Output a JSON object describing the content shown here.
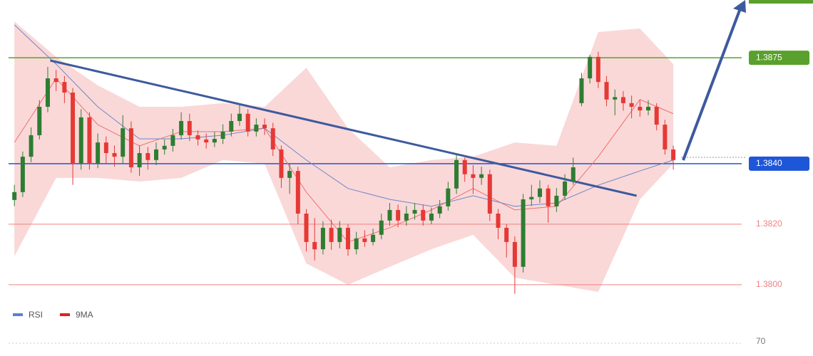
{
  "chart_data": {
    "type": "candlestick",
    "up_color": "#2e7d32",
    "down_color": "#e53935",
    "open": [
      1.3828,
      1.38306,
      1.38423,
      1.38494,
      1.38588,
      1.38682,
      1.3867,
      1.38635,
      1.384,
      1.38553,
      1.384,
      1.3847,
      1.38435,
      1.38423,
      1.38517,
      1.38388,
      1.38435,
      1.38412,
      1.38447,
      1.38459,
      1.38494,
      1.38541,
      1.38494,
      1.3848,
      1.3847,
      1.38482,
      1.38506,
      1.38541,
      1.38565,
      1.38506,
      1.38529,
      1.38517,
      1.38447,
      1.38353,
      1.38376,
      1.38235,
      1.38141,
      1.38117,
      1.38188,
      1.38141,
      1.38188,
      1.38117,
      1.38153,
      1.38141,
      1.38165,
      1.38212,
      1.38247,
      1.38212,
      1.38235,
      1.38247,
      1.38212,
      1.38235,
      1.38259,
      1.38318,
      1.38412,
      1.38365,
      1.38353,
      1.38365,
      1.38235,
      1.38188,
      1.38141,
      1.38059,
      1.38282,
      1.3829,
      1.38318,
      1.38259,
      1.38294,
      1.38341,
      1.386,
      1.38682,
      1.38753,
      1.3867,
      1.38612,
      1.3862,
      1.386,
      1.38588,
      1.38576,
      1.38588,
      1.38529,
      1.38447
    ],
    "high": [
      1.3833,
      1.3844,
      1.3852,
      1.3861,
      1.3872,
      1.3871,
      1.3869,
      1.3865,
      1.3858,
      1.3857,
      1.385,
      1.3849,
      1.3846,
      1.3856,
      1.3854,
      1.3846,
      1.38455,
      1.3847,
      1.3848,
      1.38515,
      1.3857,
      1.38565,
      1.3851,
      1.385,
      1.38505,
      1.3853,
      1.38565,
      1.386,
      1.3858,
      1.3855,
      1.3855,
      1.38535,
      1.3846,
      1.384,
      1.3839,
      1.3825,
      1.3822,
      1.3821,
      1.38215,
      1.3821,
      1.382,
      1.38175,
      1.3818,
      1.38185,
      1.38235,
      1.3827,
      1.38265,
      1.3826,
      1.3827,
      1.38265,
      1.38255,
      1.3828,
      1.3834,
      1.3843,
      1.3842,
      1.38395,
      1.3839,
      1.3838,
      1.3825,
      1.382,
      1.3816,
      1.383,
      1.3833,
      1.38345,
      1.3833,
      1.3832,
      1.38365,
      1.3842,
      1.387,
      1.3876,
      1.3877,
      1.3869,
      1.38645,
      1.3864,
      1.38625,
      1.3861,
      1.3861,
      1.386,
      1.38545,
      1.3846
    ],
    "low": [
      1.3826,
      1.3829,
      1.38405,
      1.3848,
      1.3857,
      1.3864,
      1.386,
      1.3833,
      1.3838,
      1.3838,
      1.38385,
      1.384,
      1.3839,
      1.384,
      1.3837,
      1.3836,
      1.3838,
      1.38395,
      1.3843,
      1.3844,
      1.3848,
      1.38475,
      1.3846,
      1.3845,
      1.38455,
      1.38465,
      1.3849,
      1.38525,
      1.3849,
      1.3849,
      1.38495,
      1.38425,
      1.3832,
      1.383,
      1.382,
      1.3811,
      1.3808,
      1.381,
      1.38115,
      1.3812,
      1.38095,
      1.381,
      1.38125,
      1.3813,
      1.3815,
      1.38195,
      1.3819,
      1.38195,
      1.38215,
      1.38195,
      1.382,
      1.3822,
      1.38245,
      1.383,
      1.3834,
      1.383,
      1.3833,
      1.3821,
      1.3815,
      1.3809,
      1.3797,
      1.3804,
      1.3826,
      1.3827,
      1.38205,
      1.3824,
      1.3828,
      1.3833,
      1.3859,
      1.38665,
      1.3865,
      1.3859,
      1.3856,
      1.38575,
      1.3855,
      1.38555,
      1.3856,
      1.3851,
      1.3843,
      1.3838
    ],
    "close": [
      1.38306,
      1.38423,
      1.38494,
      1.38588,
      1.38682,
      1.3867,
      1.38635,
      1.384,
      1.38553,
      1.384,
      1.3847,
      1.38435,
      1.38423,
      1.38517,
      1.38388,
      1.38435,
      1.38412,
      1.38447,
      1.38459,
      1.38494,
      1.38541,
      1.38494,
      1.3848,
      1.3847,
      1.38482,
      1.38506,
      1.38541,
      1.38565,
      1.38506,
      1.38529,
      1.38517,
      1.38447,
      1.38353,
      1.38376,
      1.38235,
      1.38141,
      1.38117,
      1.38188,
      1.38141,
      1.38188,
      1.38117,
      1.38153,
      1.38141,
      1.38165,
      1.38212,
      1.38247,
      1.38212,
      1.38235,
      1.38247,
      1.38212,
      1.38235,
      1.38259,
      1.38318,
      1.38412,
      1.38365,
      1.38353,
      1.38365,
      1.38235,
      1.38188,
      1.38141,
      1.38059,
      1.38282,
      1.3829,
      1.38318,
      1.38259,
      1.38294,
      1.38341,
      1.38388,
      1.38682,
      1.38753,
      1.3867,
      1.38612,
      1.3862,
      1.386,
      1.38588,
      1.38576,
      1.38588,
      1.38529,
      1.38447,
      1.38412
    ],
    "xlim": [
      -0.7,
      87.2
    ],
    "ylim": [
      1.37929,
      1.38941
    ],
    "yticks": [
      {
        "value": 1.3875,
        "label": "1.3875"
      },
      {
        "value": 1.384,
        "label": "1.3840"
      },
      {
        "value": 1.382,
        "label": "1.3820"
      },
      {
        "value": 1.38,
        "label": "1.3800"
      }
    ],
    "level_colors": [
      "#5aa02c",
      "#1e56d8",
      "#f08080",
      "#f08080"
    ],
    "overlay_x": [
      0,
      5,
      10,
      15,
      20,
      25,
      30,
      35,
      40,
      45,
      50,
      55,
      60,
      65,
      70,
      75,
      79
    ],
    "bands": {
      "color": "#f8c8c8",
      "upper": [
        1.3887,
        1.38753,
        1.38659,
        1.38588,
        1.38588,
        1.386,
        1.38588,
        1.38717,
        1.38517,
        1.38388,
        1.38412,
        1.38423,
        1.3847,
        1.38459,
        1.38835,
        1.38847,
        1.38729
      ],
      "lower": [
        1.38094,
        1.38353,
        1.38353,
        1.38341,
        1.38353,
        1.38412,
        1.384,
        1.3807,
        1.38,
        1.38059,
        1.38117,
        1.38165,
        1.38023,
        1.38,
        1.37976,
        1.38282,
        1.384
      ]
    },
    "moving_averages": [
      {
        "color": "#f07070",
        "values": [
          1.3847,
          1.38682,
          1.38529,
          1.38459,
          1.38506,
          1.38506,
          1.38517,
          1.38306,
          1.38141,
          1.38188,
          1.38247,
          1.38318,
          1.38247,
          1.38259,
          1.38423,
          1.38612,
          1.38565
        ]
      },
      {
        "color": "#6f86c8",
        "values": [
          1.38859,
          1.38729,
          1.38588,
          1.38482,
          1.38482,
          1.38494,
          1.38517,
          1.38412,
          1.38318,
          1.38282,
          1.38259,
          1.38294,
          1.38259,
          1.3827,
          1.38329,
          1.38376,
          1.38412
        ]
      }
    ],
    "trendline": {
      "color": "#3d5a9e",
      "x": [
        4.3,
        74.6
      ],
      "values": [
        1.38741,
        1.38294
      ]
    },
    "rsi_panel": {
      "legend": [
        {
          "name": "RSI",
          "color": "#5b7fd6"
        },
        {
          "name": "9MA",
          "color": "#e02020"
        }
      ],
      "yticks": [
        70
      ]
    }
  }
}
